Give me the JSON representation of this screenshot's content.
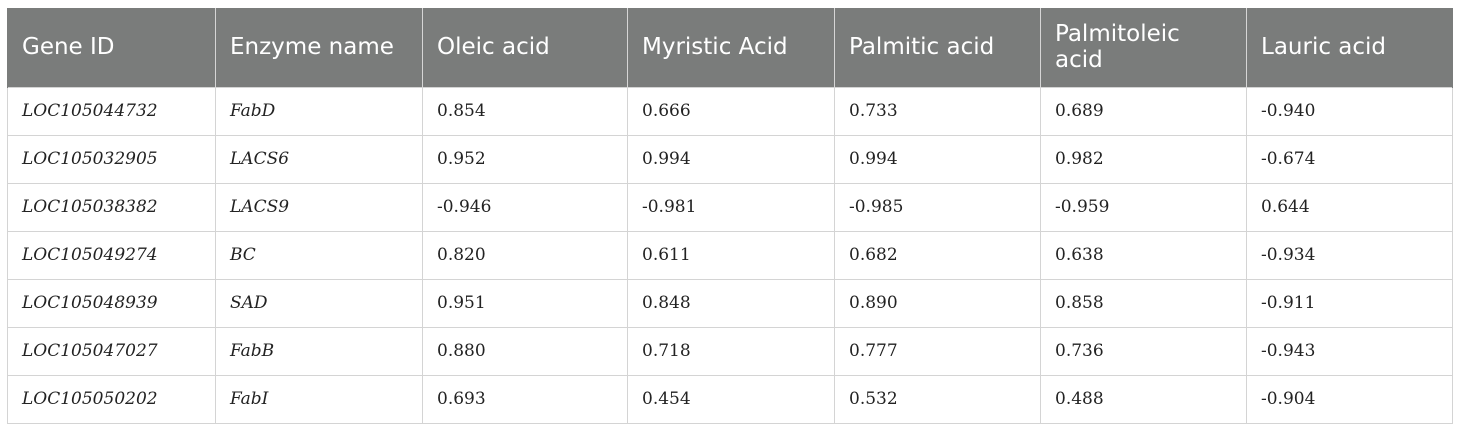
{
  "table": {
    "headers": [
      "Gene ID",
      "Enzyme name",
      "Oleic acid",
      "Myristic Acid",
      "Palmitic acid",
      "Palmitoleic acid",
      "Lauric acid"
    ],
    "rows": [
      [
        "LOC105044732",
        "FabD",
        "0.854",
        "0.666",
        "0.733",
        "0.689",
        "-0.940"
      ],
      [
        "LOC105032905",
        "LACS6",
        "0.952",
        "0.994",
        "0.994",
        "0.982",
        "-0.674"
      ],
      [
        "LOC105038382",
        "LACS9",
        "-0.946",
        "-0.981",
        "-0.985",
        "-0.959",
        "0.644"
      ],
      [
        "LOC105049274",
        "BC",
        "0.820",
        "0.611",
        "0.682",
        "0.638",
        "-0.934"
      ],
      [
        "LOC105048939",
        "SAD",
        "0.951",
        "0.848",
        "0.890",
        "0.858",
        "-0.911"
      ],
      [
        "LOC105047027",
        "FabB",
        "0.880",
        "0.718",
        "0.777",
        "0.736",
        "-0.943"
      ],
      [
        "LOC105050202",
        "FabI",
        "0.693",
        "0.454",
        "0.532",
        "0.488",
        "-0.904"
      ]
    ]
  }
}
